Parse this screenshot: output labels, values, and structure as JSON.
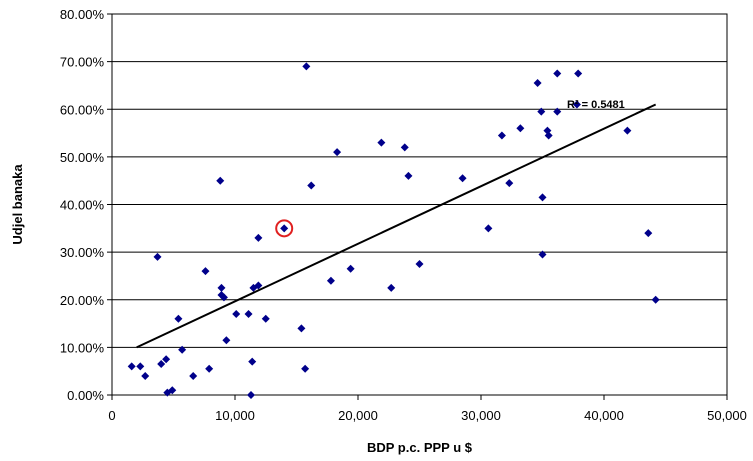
{
  "chart_data": {
    "type": "scatter",
    "xlabel": "BDP p.c. PPP u $",
    "ylabel": "Udjel banaka",
    "xlim": [
      0,
      50000
    ],
    "ylim": [
      0,
      0.8
    ],
    "xticks": [
      0,
      10000,
      20000,
      30000,
      40000,
      50000
    ],
    "xtick_labels": [
      "0",
      "10,000",
      "20,000",
      "30,000",
      "40,000",
      "50,000"
    ],
    "yticks": [
      0,
      0.1,
      0.2,
      0.3,
      0.4,
      0.5,
      0.6,
      0.7,
      0.8
    ],
    "ytick_labels": [
      "0.00%",
      "10.00%",
      "20.00%",
      "30.00%",
      "40.00%",
      "50.00%",
      "60.00%",
      "70.00%",
      "80.00%"
    ],
    "grid": "horizontal",
    "marker_color": "#00008B",
    "trendline": {
      "x": [
        2000,
        44200
      ],
      "y": [
        0.1,
        0.61
      ],
      "color": "#000000"
    },
    "r2_label": "R² = 0.5481",
    "highlight": {
      "x": 14000,
      "y": 0.35,
      "color": "#E02020"
    },
    "points": [
      [
        1600,
        0.06
      ],
      [
        2300,
        0.06
      ],
      [
        2700,
        0.04
      ],
      [
        3700,
        0.29
      ],
      [
        4000,
        0.065
      ],
      [
        4400,
        0.075
      ],
      [
        4500,
        0.005
      ],
      [
        4900,
        0.01
      ],
      [
        5400,
        0.16
      ],
      [
        5700,
        0.095
      ],
      [
        6600,
        0.04
      ],
      [
        7600,
        0.26
      ],
      [
        7900,
        0.055
      ],
      [
        8800,
        0.45
      ],
      [
        8900,
        0.225
      ],
      [
        8900,
        0.21
      ],
      [
        9100,
        0.205
      ],
      [
        9300,
        0.115
      ],
      [
        10100,
        0.17
      ],
      [
        11100,
        0.17
      ],
      [
        11300,
        0.0
      ],
      [
        11400,
        0.07
      ],
      [
        11500,
        0.225
      ],
      [
        11900,
        0.23
      ],
      [
        11900,
        0.33
      ],
      [
        12500,
        0.16
      ],
      [
        14000,
        0.35
      ],
      [
        15400,
        0.14
      ],
      [
        15700,
        0.055
      ],
      [
        15800,
        0.69
      ],
      [
        16200,
        0.44
      ],
      [
        17800,
        0.24
      ],
      [
        18300,
        0.51
      ],
      [
        19400,
        0.265
      ],
      [
        21900,
        0.53
      ],
      [
        22700,
        0.225
      ],
      [
        23800,
        0.52
      ],
      [
        24100,
        0.46
      ],
      [
        25000,
        0.275
      ],
      [
        28500,
        0.455
      ],
      [
        30600,
        0.35
      ],
      [
        31700,
        0.545
      ],
      [
        32300,
        0.445
      ],
      [
        33200,
        0.56
      ],
      [
        34600,
        0.655
      ],
      [
        34900,
        0.595
      ],
      [
        35000,
        0.415
      ],
      [
        35000,
        0.295
      ],
      [
        35400,
        0.555
      ],
      [
        35500,
        0.545
      ],
      [
        36200,
        0.675
      ],
      [
        36200,
        0.595
      ],
      [
        37800,
        0.61
      ],
      [
        37900,
        0.675
      ],
      [
        41900,
        0.555
      ],
      [
        43600,
        0.34
      ],
      [
        44200,
        0.2
      ]
    ]
  }
}
